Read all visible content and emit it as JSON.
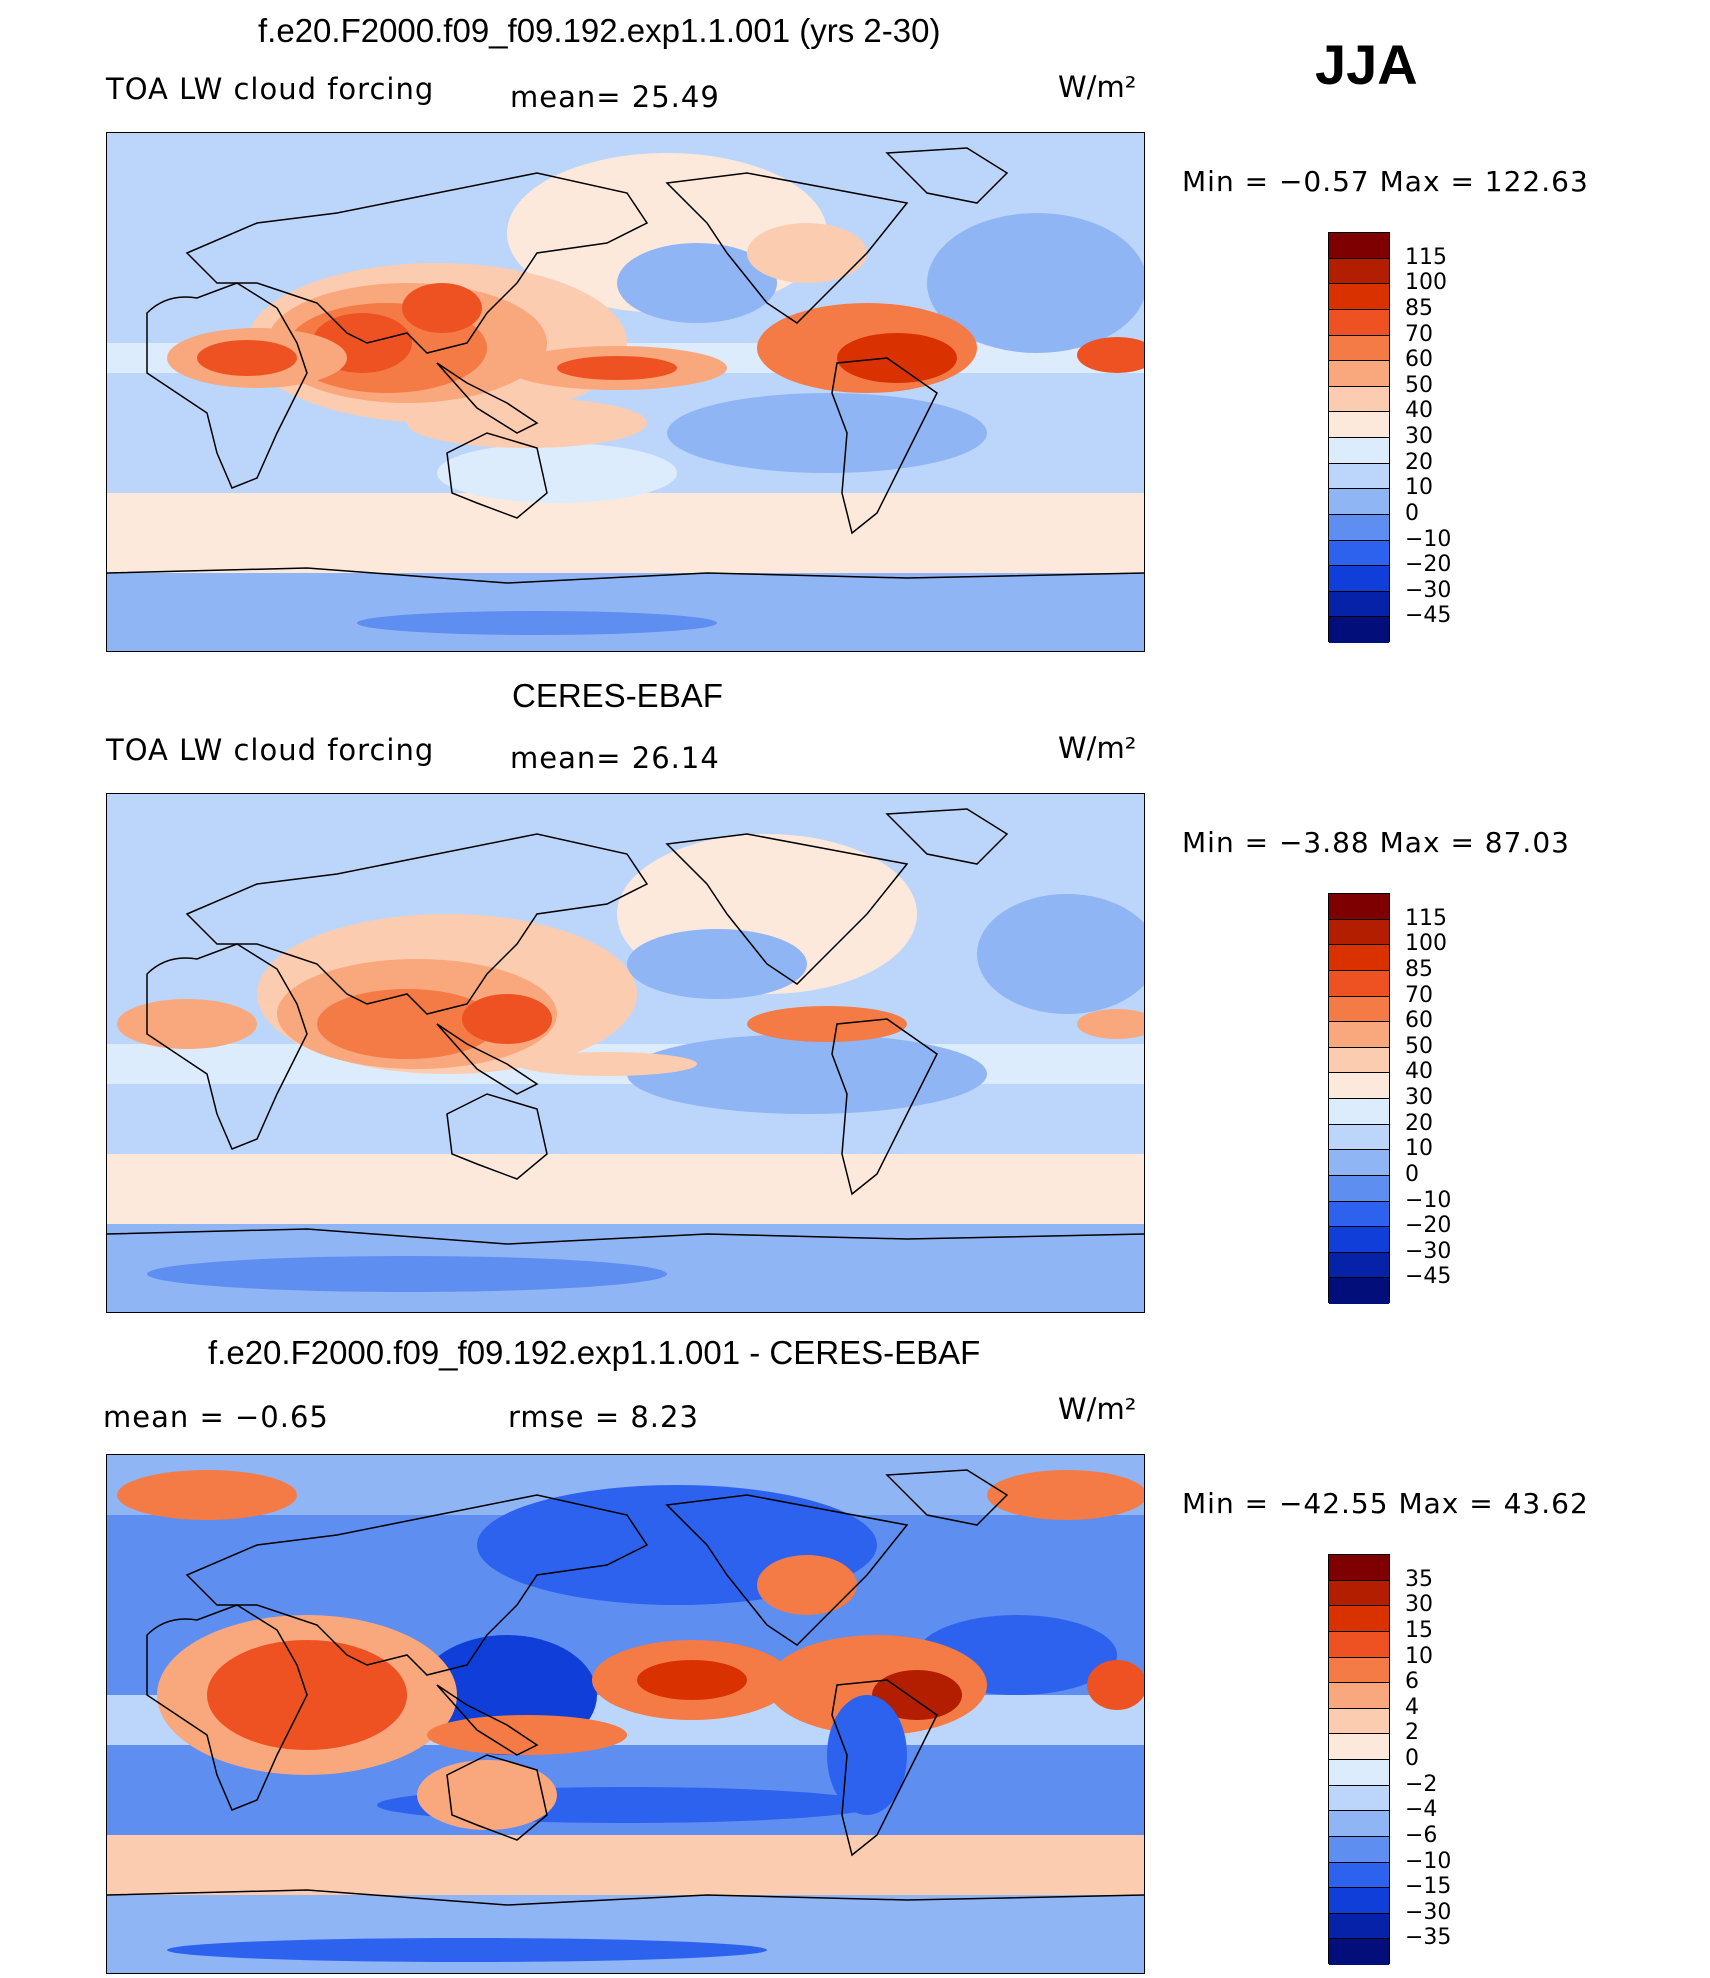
{
  "season": "JJA",
  "panels": [
    {
      "title": "f.e20.F2000.f09_f09.192.exp1.1.001 (yrs 2-30)",
      "left_label": "TOA LW cloud forcing",
      "center_label": "mean=   25.49",
      "unit": "W/m²",
      "minmax": "Min  =   −0.57  Max  =  122.63",
      "colorbar_labels": [
        "115",
        "100",
        "85",
        "70",
        "60",
        "50",
        "40",
        "30",
        "20",
        "10",
        "0",
        "−10",
        "−20",
        "−30",
        "−45"
      ]
    },
    {
      "title": "CERES-EBAF",
      "left_label": "TOA LW cloud forcing",
      "center_label": "mean=   26.14",
      "unit": "W/m²",
      "minmax": "Min  =   −3.88  Max  =   87.03",
      "colorbar_labels": [
        "115",
        "100",
        "85",
        "70",
        "60",
        "50",
        "40",
        "30",
        "20",
        "10",
        "0",
        "−10",
        "−20",
        "−30",
        "−45"
      ]
    },
    {
      "title": "f.e20.F2000.f09_f09.192.exp1.1.001 - CERES-EBAF",
      "left_label": "mean  =    −0.65",
      "center_label": "rmse  =     8.23",
      "unit": "W/m²",
      "minmax": "Min  = −42.55  Max  =   43.62",
      "colorbar_labels": [
        "35",
        "30",
        "15",
        "10",
        "6",
        "4",
        "2",
        "0",
        "−2",
        "−4",
        "−6",
        "−10",
        "−15",
        "−30",
        "−35"
      ]
    }
  ],
  "colorbar_colors": [
    "#7f0000",
    "#b31d00",
    "#d93200",
    "#ee5222",
    "#f47b45",
    "#f9a77c",
    "#fcccb0",
    "#fde9dc",
    "#dcecfc",
    "#bcd6fb",
    "#8fb5f5",
    "#5d8ef0",
    "#2d62ee",
    "#0f3fd8",
    "#0622a8",
    "#020f7a"
  ],
  "map_colors": {
    "ocean_base": "#bcd6fb",
    "neutral": "#fde9dc",
    "light_blue": "#dcecfc",
    "mid_blue": "#8fb5f5",
    "blue": "#5d8ef0",
    "deep_blue": "#2d62ee",
    "dark_blue": "#0f3fd8",
    "peach": "#fcccb0",
    "salmon": "#f9a77c",
    "orange": "#f47b45",
    "red_orange": "#ee5222",
    "red": "#d93200",
    "dark_red": "#b31d00"
  }
}
